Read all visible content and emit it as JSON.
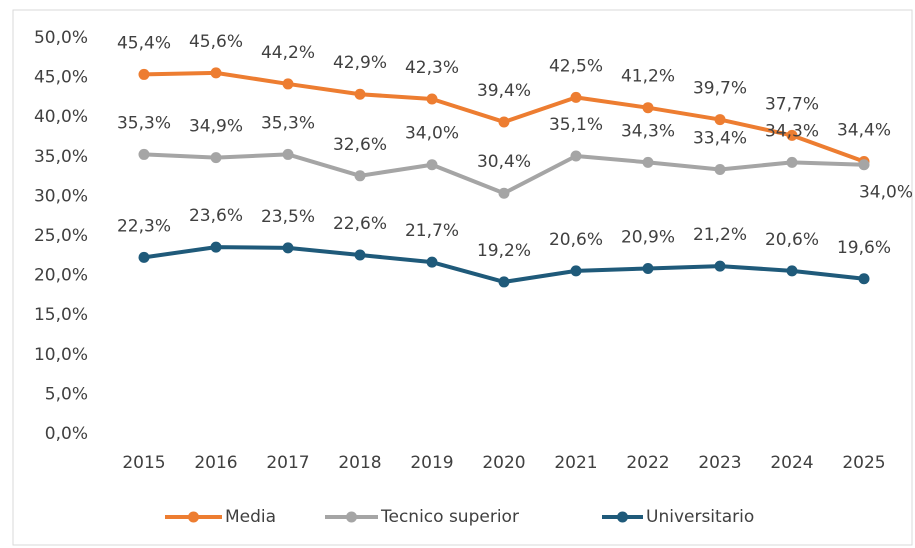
{
  "chart_data": {
    "type": "line",
    "categories": [
      "2015",
      "2016",
      "2017",
      "2018",
      "2019",
      "2020",
      "2021",
      "2022",
      "2023",
      "2024",
      "2025"
    ],
    "series": [
      {
        "name": "Media",
        "color": "#ED7D31",
        "values": [
          45.4,
          45.6,
          44.2,
          42.9,
          42.3,
          39.4,
          42.5,
          41.2,
          39.7,
          37.7,
          34.4
        ],
        "value_labels": [
          "45,4%",
          "45,6%",
          "44,2%",
          "42,9%",
          "42,3%",
          "39,4%",
          "42,5%",
          "41,2%",
          "39,7%",
          "37,7%",
          "34,4%"
        ]
      },
      {
        "name": "Tecnico superior",
        "color": "#A5A5A5",
        "values": [
          35.3,
          34.9,
          35.3,
          32.6,
          34.0,
          30.4,
          35.1,
          34.3,
          33.4,
          34.3,
          34.0
        ],
        "value_labels": [
          "35,3%",
          "34,9%",
          "35,3%",
          "32,6%",
          "34,0%",
          "30,4%",
          "35,1%",
          "34,3%",
          "33,4%",
          "34,3%",
          "34,0%"
        ]
      },
      {
        "name": "Universitario",
        "color": "#1F5A7A",
        "values": [
          22.3,
          23.6,
          23.5,
          22.6,
          21.7,
          19.2,
          20.6,
          20.9,
          21.2,
          20.6,
          19.6
        ],
        "value_labels": [
          "22,3%",
          "23,6%",
          "23,5%",
          "22,6%",
          "21,7%",
          "19,2%",
          "20,6%",
          "20,9%",
          "21,2%",
          "20,6%",
          "19,6%"
        ]
      }
    ],
    "ylim": [
      0,
      50
    ],
    "yticks": [
      {
        "value": 0,
        "label": "0,0%"
      },
      {
        "value": 5,
        "label": "5,0%"
      },
      {
        "value": 10,
        "label": "10,0%"
      },
      {
        "value": 15,
        "label": "15,0%"
      },
      {
        "value": 20,
        "label": "20,0%"
      },
      {
        "value": 25,
        "label": "25,0%"
      },
      {
        "value": 30,
        "label": "30,0%"
      },
      {
        "value": 35,
        "label": "35,0%"
      },
      {
        "value": 40,
        "label": "40,0%"
      },
      {
        "value": 45,
        "label": "45,0%"
      },
      {
        "value": 50,
        "label": "50,0%"
      }
    ],
    "grid": false,
    "legend": "bottom"
  }
}
